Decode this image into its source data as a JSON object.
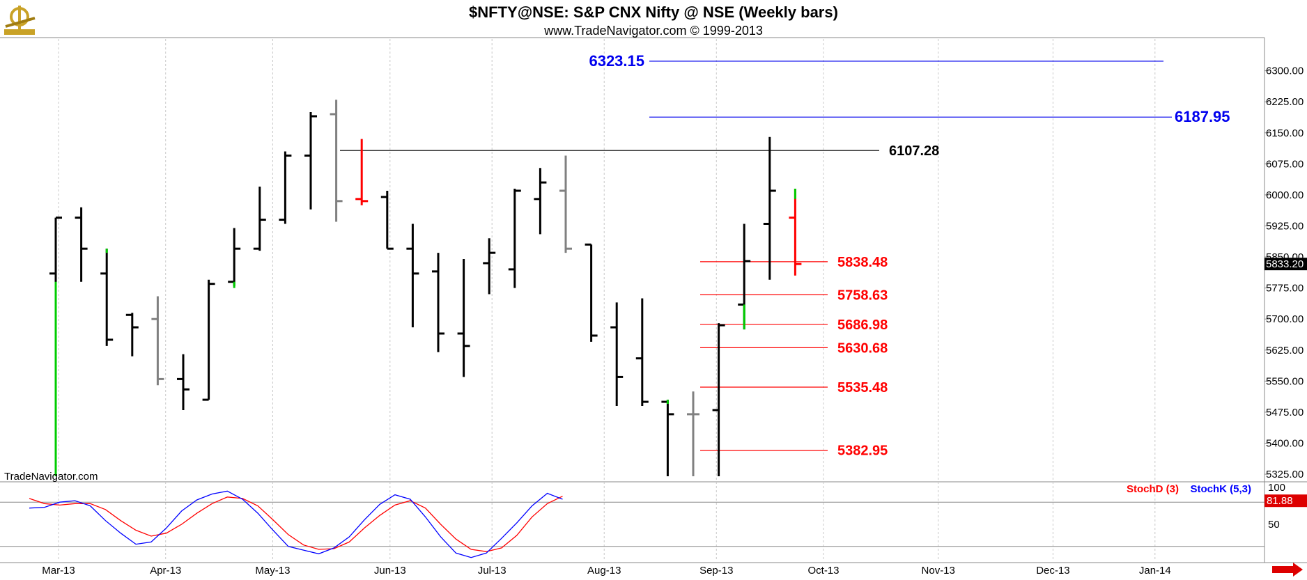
{
  "header": {
    "title": "$NFTY@NSE:  S&P CNX Nifty @ NSE  (Weekly bars)",
    "subtitle": "www.TradeNavigator.com © 1999-2013"
  },
  "watermark": "TradeNavigator.com",
  "logo_icon": "sextant-logo-icon",
  "colors": {
    "bar_up": "#000000",
    "bar_inside": "#808080",
    "bar_reversal": "#ff0000",
    "bar_green": "#00cc00",
    "level_blue": "#0000ee",
    "level_red": "#ff0000",
    "level_black": "#000000",
    "stoch_d": "#ff0000",
    "stoch_k": "#0000ff",
    "grid": "#c8c8c8"
  },
  "chart_data": {
    "type": "ohlc",
    "ylim": [
      5310,
      6370
    ],
    "y_ticks": [
      "6300.00",
      "6225.00",
      "6150.00",
      "6075.00",
      "6000.00",
      "5925.00",
      "5850.00",
      "5775.00",
      "5700.00",
      "5625.00",
      "5550.00",
      "5475.00",
      "5400.00",
      "5325.00"
    ],
    "y_tick_values": [
      6300,
      6225,
      6150,
      6075,
      6000,
      5925,
      5850,
      5775,
      5700,
      5625,
      5550,
      5475,
      5400,
      5325
    ],
    "x_labels": [
      "Mar-13",
      "Apr-13",
      "May-13",
      "Jun-13",
      "Jul-13",
      "Aug-13",
      "Sep-13",
      "Oct-13",
      "Nov-13",
      "Dec-13",
      "Jan-14"
    ],
    "x_label_weeks": [
      0,
      4.2,
      8.4,
      13,
      17,
      21.4,
      25.8,
      30,
      34.5,
      39,
      43
    ],
    "grid": true,
    "last_price": "5833.20",
    "bars": [
      {
        "o": 5810,
        "h": 5945,
        "l": 5320,
        "c": 5945,
        "color": "black",
        "green_seg": [
          5320,
          5790
        ]
      },
      {
        "o": 5945,
        "h": 5970,
        "l": 5790,
        "c": 5870,
        "color": "black"
      },
      {
        "o": 5810,
        "h": 5870,
        "l": 5635,
        "c": 5650,
        "color": "black",
        "green_seg": [
          5860,
          5870
        ]
      },
      {
        "o": 5710,
        "h": 5715,
        "l": 5610,
        "c": 5680,
        "color": "black"
      },
      {
        "o": 5700,
        "h": 5755,
        "l": 5540,
        "c": 5555,
        "color": "gray"
      },
      {
        "o": 5555,
        "h": 5615,
        "l": 5480,
        "c": 5530,
        "color": "black"
      },
      {
        "o": 5505,
        "h": 5795,
        "l": 5505,
        "c": 5785,
        "color": "black"
      },
      {
        "o": 5790,
        "h": 5920,
        "l": 5780,
        "c": 5870,
        "color": "black",
        "green_seg": [
          5775,
          5790
        ]
      },
      {
        "o": 5870,
        "h": 6020,
        "l": 5865,
        "c": 5940,
        "color": "black"
      },
      {
        "o": 5940,
        "h": 6105,
        "l": 5930,
        "c": 6095,
        "color": "black"
      },
      {
        "o": 6095,
        "h": 6200,
        "l": 5965,
        "c": 6190,
        "color": "black"
      },
      {
        "o": 6195,
        "h": 6230,
        "l": 5935,
        "c": 5985,
        "color": "gray"
      },
      {
        "o": 5990,
        "h": 6135,
        "l": 5975,
        "c": 5985,
        "color": "red"
      },
      {
        "o": 5995,
        "h": 6010,
        "l": 5870,
        "c": 5870,
        "color": "black"
      },
      {
        "o": 5870,
        "h": 5930,
        "l": 5680,
        "c": 5810,
        "color": "black"
      },
      {
        "o": 5815,
        "h": 5860,
        "l": 5620,
        "c": 5665,
        "color": "black"
      },
      {
        "o": 5665,
        "h": 5845,
        "l": 5560,
        "c": 5635,
        "color": "black"
      },
      {
        "o": 5835,
        "h": 5895,
        "l": 5760,
        "c": 5860,
        "color": "black"
      },
      {
        "o": 5820,
        "h": 6015,
        "l": 5775,
        "c": 6010,
        "color": "black"
      },
      {
        "o": 5990,
        "h": 6065,
        "l": 5905,
        "c": 6030,
        "color": "black"
      },
      {
        "o": 6010,
        "h": 6095,
        "l": 5860,
        "c": 5870,
        "color": "gray"
      },
      {
        "o": 5880,
        "h": 5880,
        "l": 5645,
        "c": 5660,
        "color": "black"
      },
      {
        "o": 5680,
        "h": 5740,
        "l": 5490,
        "c": 5560,
        "color": "black"
      },
      {
        "o": 5605,
        "h": 5750,
        "l": 5490,
        "c": 5500,
        "color": "black"
      },
      {
        "o": 5500,
        "h": 5505,
        "l": 5320,
        "c": 5470,
        "color": "black",
        "green_seg": [
          5495,
          5505
        ]
      },
      {
        "o": 5470,
        "h": 5525,
        "l": 5320,
        "c": 5470,
        "color": "gray"
      },
      {
        "o": 5480,
        "h": 5690,
        "l": 5320,
        "c": 5685,
        "color": "black"
      },
      {
        "o": 5735,
        "h": 5930,
        "l": 5675,
        "c": 5840,
        "color": "black",
        "green_seg": [
          5675,
          5735
        ]
      },
      {
        "o": 5930,
        "h": 6140,
        "l": 5795,
        "c": 6010,
        "color": "black"
      },
      {
        "o": 5945,
        "h": 6015,
        "l": 5805,
        "c": 5833,
        "color": "red",
        "green_seg": [
          5990,
          6015
        ]
      }
    ],
    "levels": [
      {
        "value": 6323.15,
        "label": "6323.15",
        "color": "blue"
      },
      {
        "value": 6187.95,
        "label": "6187.95",
        "color": "blue"
      },
      {
        "value": 6107.28,
        "label": "6107.28",
        "color": "black"
      },
      {
        "value": 5838.48,
        "label": "5838.48",
        "color": "red"
      },
      {
        "value": 5758.63,
        "label": "5758.63",
        "color": "red"
      },
      {
        "value": 5686.98,
        "label": "5686.98",
        "color": "red"
      },
      {
        "value": 5630.68,
        "label": "5630.68",
        "color": "red"
      },
      {
        "value": 5535.48,
        "label": "5535.48",
        "color": "red"
      },
      {
        "value": 5382.95,
        "label": "5382.95",
        "color": "red"
      }
    ],
    "stochastic": {
      "legend_d": "StochD (3)",
      "legend_k": "StochK (5,3)",
      "ylim": [
        0,
        100
      ],
      "ticks": [
        "100",
        "50"
      ],
      "tick_values": [
        100,
        50
      ],
      "ref_lines": [
        80,
        20
      ],
      "last_value": "81.88",
      "stoch_d": [
        85,
        78,
        76,
        78,
        78,
        70,
        55,
        42,
        34,
        38,
        50,
        65,
        78,
        87,
        85,
        75,
        56,
        36,
        22,
        16,
        17,
        26,
        45,
        62,
        76,
        82,
        72,
        50,
        30,
        16,
        13,
        18,
        35,
        60,
        78,
        88
      ],
      "stoch_k": [
        72,
        73,
        80,
        82,
        75,
        55,
        38,
        23,
        26,
        45,
        68,
        83,
        91,
        95,
        84,
        65,
        42,
        20,
        15,
        10,
        18,
        33,
        56,
        77,
        90,
        84,
        60,
        33,
        11,
        5,
        11,
        31,
        52,
        75,
        92,
        84
      ]
    }
  }
}
